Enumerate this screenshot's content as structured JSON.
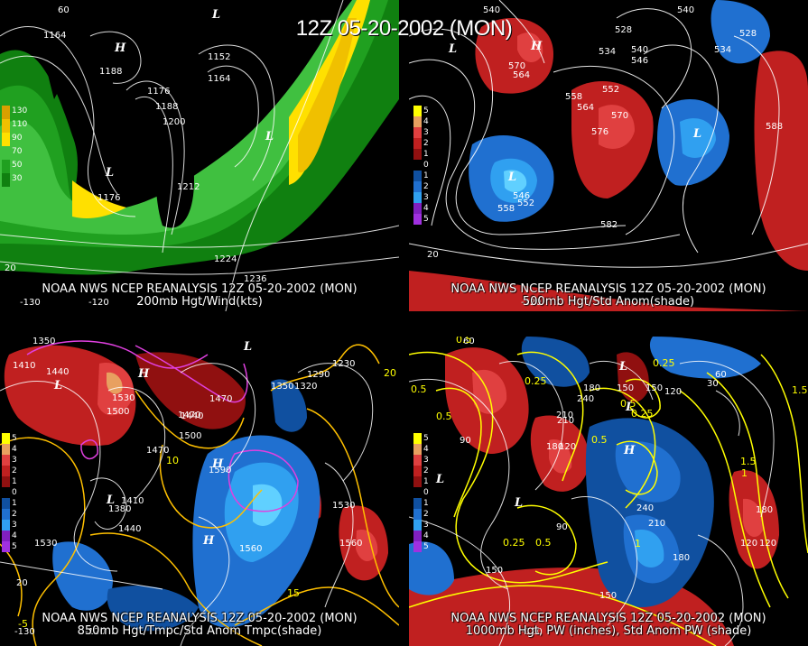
{
  "header": {
    "title": "12Z 05-20-2002 (MON)"
  },
  "panels": [
    {
      "id": "tl",
      "caption_line1": "NOAA NWS NCEP REANALYSIS 12Z 05-20-2002 (MON)",
      "caption_line2": "200mb Hgt/Wind(kts)",
      "legend": [
        {
          "label": "130",
          "color": "#d8a000"
        },
        {
          "label": "110",
          "color": "#f0c000"
        },
        {
          "label": "90",
          "color": "#ffe000"
        },
        {
          "label": "70",
          "color": "#40c040"
        },
        {
          "label": "50",
          "color": "#20a020"
        },
        {
          "label": "30",
          "color": "#108010"
        }
      ],
      "contour_labels": [
        "1164",
        "1188",
        "1152",
        "1164",
        "1176",
        "1188",
        "1200",
        "1176",
        "1212",
        "1224",
        "1236"
      ],
      "highs_lows": [
        "H",
        "L",
        "L",
        "L"
      ]
    },
    {
      "id": "tr",
      "caption_line1": "NOAA NWS NCEP REANALYSIS 12Z 05-20-2002 (MON)",
      "caption_line2": "500mb Hgt/Std Anom(shade)",
      "legend": [
        {
          "label": "5",
          "color": "#ffff00"
        },
        {
          "label": "4",
          "color": "#e8a060"
        },
        {
          "label": "3",
          "color": "#e04040"
        },
        {
          "label": "2",
          "color": "#c02020"
        },
        {
          "label": "1",
          "color": "#901010"
        },
        {
          "label": "0",
          "color": "#000000"
        },
        {
          "label": "1",
          "color": "#1050a0"
        },
        {
          "label": "2",
          "color": "#2070d0"
        },
        {
          "label": "3",
          "color": "#30a0f0"
        },
        {
          "label": "4",
          "color": "#8020c0"
        },
        {
          "label": "5",
          "color": "#a030e0"
        }
      ],
      "contour_labels": [
        "540",
        "528",
        "534",
        "540",
        "546",
        "570",
        "564",
        "558",
        "552",
        "564",
        "570",
        "576",
        "588",
        "546",
        "552",
        "558",
        "582",
        "540",
        "534",
        "528"
      ],
      "highs_lows": [
        "H",
        "L",
        "L",
        "L"
      ]
    },
    {
      "id": "bl",
      "caption_line1": "NOAA NWS NCEP REANALYSIS 12Z 05-20-2002 (MON)",
      "caption_line2": "850mb Hgt/Tmpc/Std Anom Tmpc(shade)",
      "legend": [
        {
          "label": "5",
          "color": "#ffff00"
        },
        {
          "label": "4",
          "color": "#e8a060"
        },
        {
          "label": "3",
          "color": "#e04040"
        },
        {
          "label": "2",
          "color": "#c02020"
        },
        {
          "label": "1",
          "color": "#901010"
        },
        {
          "label": "0",
          "color": "#000000"
        },
        {
          "label": "1",
          "color": "#1050a0"
        },
        {
          "label": "2",
          "color": "#2070d0"
        },
        {
          "label": "3",
          "color": "#30a0f0"
        },
        {
          "label": "4",
          "color": "#8020c0"
        },
        {
          "label": "5",
          "color": "#a030e0"
        }
      ],
      "contour_labels": [
        "1350",
        "1410",
        "1440",
        "1530",
        "1500",
        "1470",
        "1440",
        "1470",
        "1410",
        "1380",
        "1440",
        "1530",
        "1560",
        "1530",
        "1590",
        "1350",
        "1320",
        "1290",
        "1230",
        "1560",
        "1500",
        "1470"
      ],
      "highs_lows": [
        "L",
        "H",
        "L",
        "H",
        "L",
        "H"
      ],
      "temp_labels": [
        "10",
        "15",
        "20",
        "-5"
      ]
    },
    {
      "id": "br",
      "caption_line1": "NOAA NWS NCEP REANALYSIS 12Z 05-20-2002 (MON)",
      "caption_line2": "1000mb Hgt, PW (inches), Std Anom PW (shade)",
      "legend": [
        {
          "label": "5",
          "color": "#ffff00"
        },
        {
          "label": "4",
          "color": "#e8a060"
        },
        {
          "label": "3",
          "color": "#e04040"
        },
        {
          "label": "2",
          "color": "#c02020"
        },
        {
          "label": "1",
          "color": "#901010"
        },
        {
          "label": "0",
          "color": "#000000"
        },
        {
          "label": "1",
          "color": "#1050a0"
        },
        {
          "label": "2",
          "color": "#2070d0"
        },
        {
          "label": "3",
          "color": "#30a0f0"
        },
        {
          "label": "4",
          "color": "#8020c0"
        },
        {
          "label": "5",
          "color": "#a030e0"
        }
      ],
      "contour_labels": [
        "60",
        "90",
        "120",
        "150",
        "180",
        "210",
        "240",
        "150",
        "180",
        "120",
        "90",
        "60",
        "30",
        "120",
        "180",
        "210",
        "150",
        "180",
        "120",
        "150",
        "240",
        "210"
      ],
      "pw_labels": [
        "0.5",
        "0.25",
        "0.25",
        "0.5",
        "0.25",
        "0.5",
        "1",
        "1.5",
        "1",
        "0.5",
        "0.25",
        "0.5",
        "0.5",
        "1.5"
      ],
      "highs_lows": [
        "L",
        "L",
        "L",
        "L",
        "H"
      ]
    }
  ],
  "axis_labels": {
    "tl": [
      "60",
      "-130",
      "-120",
      "20"
    ],
    "tr": [
      "-120",
      "20"
    ],
    "bl": [
      "-130",
      "-120",
      "20"
    ],
    "br": [
      "-120"
    ]
  },
  "colors": {
    "background": "#000000",
    "text": "#ffffff",
    "pw_contour": "#ffff00",
    "temp_contour": "#ffc000",
    "neg_temp": "#e040e0"
  }
}
